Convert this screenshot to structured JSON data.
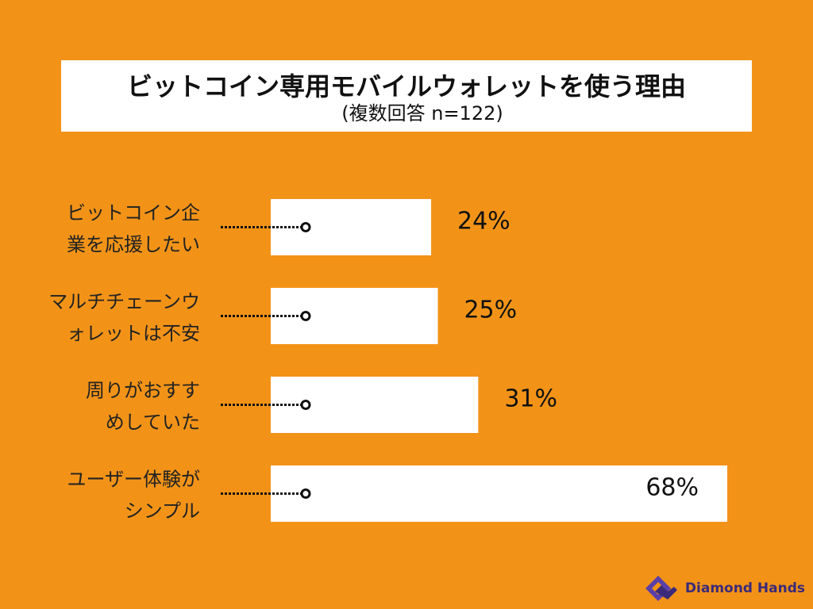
{
  "title": "ビットコイン専用モバイルウォレットを使う理由",
  "subtitle": "(複数回答 n=122)",
  "colors": {
    "background": "#f29318",
    "bar": "#ffffff",
    "text": "#111111",
    "brand": "#3b2a78"
  },
  "chart_data": {
    "type": "bar",
    "orientation": "horizontal",
    "categories": [
      [
        "ビットコイン企",
        "業を応援したい"
      ],
      [
        "マルチチェーンウ",
        "ォレットは不安"
      ],
      [
        "周りがおすす",
        "めしていた"
      ],
      [
        "ユーザー体験が",
        "シンプル"
      ]
    ],
    "values": [
      24,
      25,
      31,
      68
    ],
    "value_labels": [
      "24%",
      "25%",
      "31%",
      "68%"
    ],
    "xlim": [
      0,
      68
    ],
    "unit": "%",
    "grid": false,
    "legend": "none"
  },
  "brand": {
    "name": "Diamond Hands",
    "icon": "diamond-hands-logo-icon"
  }
}
